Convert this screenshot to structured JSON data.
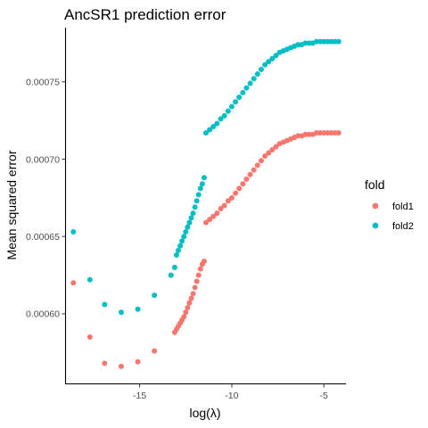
{
  "chart_data": {
    "type": "scatter",
    "title": "AncSR1 prediction error",
    "xlabel": "log(λ)",
    "ylabel": "Mean squared error",
    "xlim": [
      -19.0,
      -3.8
    ],
    "ylim": [
      0.000555,
      0.000785
    ],
    "xticks": [
      -15,
      -10,
      -5
    ],
    "xtick_labels": [
      "-15",
      "-10",
      "-5"
    ],
    "yticks": [
      0.0006,
      0.00065,
      0.0007,
      0.00075
    ],
    "ytick_labels": [
      "0.00060",
      "0.00065",
      "0.00070",
      "0.00075"
    ],
    "grid": false,
    "legend": {
      "title": "fold",
      "placement": "right"
    },
    "series": [
      {
        "name": "fold1",
        "color": "#F8766D",
        "points": [
          [
            -18.6,
            0.00062
          ],
          [
            -17.7,
            0.000585
          ],
          [
            -16.9,
            0.000568
          ],
          [
            -16.0,
            0.000566
          ],
          [
            -15.1,
            0.000569
          ],
          [
            -14.2,
            0.000576
          ],
          [
            -13.1,
            0.000588
          ],
          [
            -13.0,
            0.00059
          ],
          [
            -12.9,
            0.000592
          ],
          [
            -12.8,
            0.000594
          ],
          [
            -12.7,
            0.000596
          ],
          [
            -12.6,
            0.000598
          ],
          [
            -12.5,
            0.000601
          ],
          [
            -12.4,
            0.000604
          ],
          [
            -12.3,
            0.000607
          ],
          [
            -12.2,
            0.00061
          ],
          [
            -12.1,
            0.000613
          ],
          [
            -12.0,
            0.000617
          ],
          [
            -11.9,
            0.000621
          ],
          [
            -11.8,
            0.000625
          ],
          [
            -11.7,
            0.000629
          ],
          [
            -11.6,
            0.000632
          ],
          [
            -11.5,
            0.000634
          ],
          [
            -11.4,
            0.000659
          ],
          [
            -11.2,
            0.000661
          ],
          [
            -11.0,
            0.000663
          ],
          [
            -10.8,
            0.000665
          ],
          [
            -10.6,
            0.000668
          ],
          [
            -10.4,
            0.00067
          ],
          [
            -10.2,
            0.000673
          ],
          [
            -10.0,
            0.000675
          ],
          [
            -9.8,
            0.000678
          ],
          [
            -9.6,
            0.000681
          ],
          [
            -9.4,
            0.000684
          ],
          [
            -9.2,
            0.000687
          ],
          [
            -9.0,
            0.00069
          ],
          [
            -8.8,
            0.000693
          ],
          [
            -8.6,
            0.000696
          ],
          [
            -8.4,
            0.000699
          ],
          [
            -8.2,
            0.000702
          ],
          [
            -8.0,
            0.000704
          ],
          [
            -7.8,
            0.000706
          ],
          [
            -7.6,
            0.000708
          ],
          [
            -7.4,
            0.00071
          ],
          [
            -7.2,
            0.000711
          ],
          [
            -7.0,
            0.000712
          ],
          [
            -6.8,
            0.000713
          ],
          [
            -6.6,
            0.000714
          ],
          [
            -6.4,
            0.000715
          ],
          [
            -6.2,
            0.000715
          ],
          [
            -6.0,
            0.000716
          ],
          [
            -5.8,
            0.000716
          ],
          [
            -5.6,
            0.000716
          ],
          [
            -5.4,
            0.000717
          ],
          [
            -5.2,
            0.000717
          ],
          [
            -5.0,
            0.000717
          ],
          [
            -4.8,
            0.000717
          ],
          [
            -4.6,
            0.000717
          ],
          [
            -4.4,
            0.000717
          ],
          [
            -4.2,
            0.000717
          ]
        ]
      },
      {
        "name": "fold2",
        "color": "#00BFC4",
        "points": [
          [
            -18.6,
            0.000653
          ],
          [
            -17.7,
            0.000622
          ],
          [
            -16.9,
            0.000606
          ],
          [
            -16.0,
            0.000601
          ],
          [
            -15.1,
            0.000603
          ],
          [
            -14.2,
            0.000612
          ],
          [
            -13.3,
            0.000625
          ],
          [
            -13.1,
            0.00063
          ],
          [
            -13.0,
            0.000638
          ],
          [
            -12.9,
            0.000641
          ],
          [
            -12.8,
            0.000644
          ],
          [
            -12.7,
            0.000647
          ],
          [
            -12.6,
            0.00065
          ],
          [
            -12.5,
            0.000653
          ],
          [
            -12.4,
            0.000656
          ],
          [
            -12.3,
            0.000659
          ],
          [
            -12.2,
            0.000662
          ],
          [
            -12.1,
            0.000665
          ],
          [
            -12.0,
            0.000669
          ],
          [
            -11.9,
            0.000673
          ],
          [
            -11.8,
            0.000677
          ],
          [
            -11.7,
            0.000681
          ],
          [
            -11.6,
            0.000684
          ],
          [
            -11.5,
            0.000688
          ],
          [
            -11.4,
            0.000717
          ],
          [
            -11.2,
            0.000719
          ],
          [
            -11.0,
            0.000721
          ],
          [
            -10.8,
            0.000723
          ],
          [
            -10.6,
            0.000726
          ],
          [
            -10.4,
            0.000728
          ],
          [
            -10.2,
            0.000731
          ],
          [
            -10.0,
            0.000734
          ],
          [
            -9.8,
            0.000737
          ],
          [
            -9.6,
            0.00074
          ],
          [
            -9.4,
            0.000743
          ],
          [
            -9.2,
            0.000746
          ],
          [
            -9.0,
            0.000749
          ],
          [
            -8.8,
            0.000752
          ],
          [
            -8.6,
            0.000755
          ],
          [
            -8.4,
            0.000758
          ],
          [
            -8.2,
            0.000761
          ],
          [
            -8.0,
            0.000763
          ],
          [
            -7.8,
            0.000765
          ],
          [
            -7.6,
            0.000767
          ],
          [
            -7.4,
            0.000769
          ],
          [
            -7.2,
            0.00077
          ],
          [
            -7.0,
            0.000771
          ],
          [
            -6.8,
            0.000772
          ],
          [
            -6.6,
            0.000773
          ],
          [
            -6.4,
            0.000774
          ],
          [
            -6.2,
            0.000774
          ],
          [
            -6.0,
            0.000775
          ],
          [
            -5.8,
            0.000775
          ],
          [
            -5.6,
            0.000775
          ],
          [
            -5.4,
            0.000776
          ],
          [
            -5.2,
            0.000776
          ],
          [
            -5.0,
            0.000776
          ],
          [
            -4.8,
            0.000776
          ],
          [
            -4.6,
            0.000776
          ],
          [
            -4.4,
            0.000776
          ],
          [
            -4.2,
            0.000776
          ]
        ]
      }
    ]
  }
}
